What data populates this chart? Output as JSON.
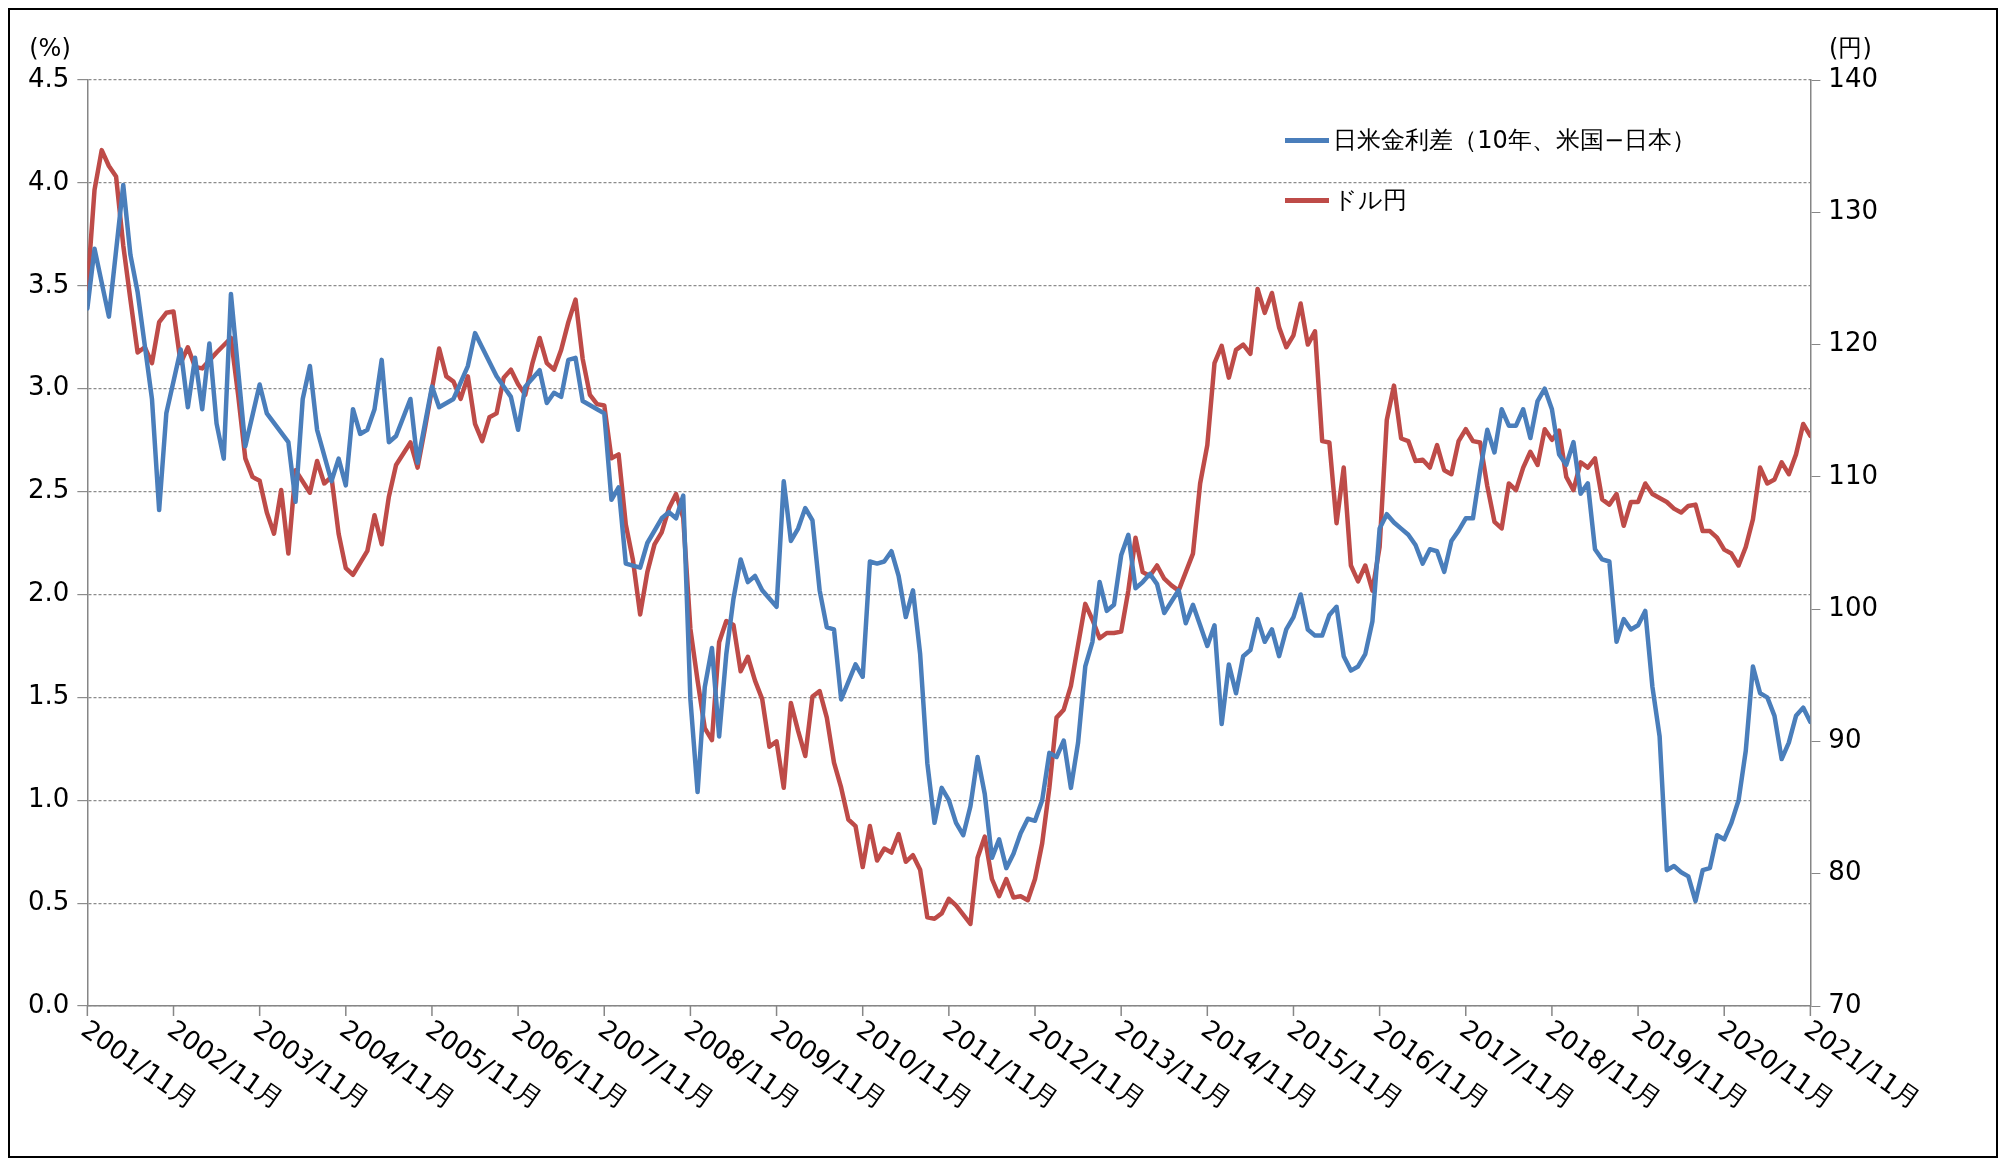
{
  "chart_data": {
    "type": "line",
    "ylabel": "(%)",
    "y2label": "(円)",
    "ylim": [
      0,
      4.5
    ],
    "yticks": [
      {
        "value": 0,
        "label": "0.0"
      },
      {
        "value": 0.5,
        "label": "0.5"
      },
      {
        "value": 1,
        "label": "1.0"
      },
      {
        "value": 1.5,
        "label": "1.5"
      },
      {
        "value": 2,
        "label": "2.0"
      },
      {
        "value": 2.5,
        "label": "2.5"
      },
      {
        "value": 3,
        "label": "3.0"
      },
      {
        "value": 3.5,
        "label": "3.5"
      },
      {
        "value": 4,
        "label": "4.0"
      },
      {
        "value": 4.5,
        "label": "4.5"
      }
    ],
    "y2lim": [
      70,
      140
    ],
    "y2ticks": [
      70,
      80,
      90,
      100,
      110,
      120,
      130,
      140
    ],
    "xlim": [
      "2001-11",
      "2021-11"
    ],
    "xticks": [
      {
        "value": "2001-11",
        "label": "2001/11月"
      },
      {
        "value": "2002-11",
        "label": "2002/11月"
      },
      {
        "value": "2003-11",
        "label": "2003/11月"
      },
      {
        "value": "2004-11",
        "label": "2004/11月"
      },
      {
        "value": "2005-11",
        "label": "2005/11月"
      },
      {
        "value": "2006-11",
        "label": "2006/11月"
      },
      {
        "value": "2007-11",
        "label": "2007/11月"
      },
      {
        "value": "2008-11",
        "label": "2008/11月"
      },
      {
        "value": "2009-11",
        "label": "2009/11月"
      },
      {
        "value": "2010-11",
        "label": "2010/11月"
      },
      {
        "value": "2011-11",
        "label": "2011/11月"
      },
      {
        "value": "2012-11",
        "label": "2012/11月"
      },
      {
        "value": "2013-11",
        "label": "2013/11月"
      },
      {
        "value": "2014-11",
        "label": "2014/11月"
      },
      {
        "value": "2015-11",
        "label": "2015/11月"
      },
      {
        "value": "2016-11",
        "label": "2016/11月"
      },
      {
        "value": "2017-11",
        "label": "2017/11月"
      },
      {
        "value": "2018-11",
        "label": "2018/11月"
      },
      {
        "value": "2019-11",
        "label": "2019/11月"
      },
      {
        "value": "2020-11",
        "label": "2020/11月"
      },
      {
        "value": "2021-11",
        "label": "2021/11月"
      }
    ],
    "grid": "y",
    "legend": "top right",
    "marker": "none",
    "line_style": "solid",
    "series": [
      {
        "name": "日米金利差（10年、米国−日本）",
        "color": "#4a7ebb",
        "x": [
          "2001-11",
          "2001-12",
          "2002-02",
          "2002-04",
          "2002-05",
          "2002-06",
          "2002-08",
          "2002-09",
          "2002-10",
          "2002-12",
          "2003-01",
          "2003-02",
          "2003-03",
          "2003-04",
          "2003-05",
          "2003-06",
          "2003-07",
          "2003-09",
          "2003-11",
          "2003-12",
          "2004-03",
          "2004-04",
          "2004-05",
          "2004-06",
          "2004-07",
          "2004-09",
          "2004-10",
          "2004-11",
          "2004-12",
          "2005-01",
          "2005-02",
          "2005-03",
          "2005-04",
          "2005-05",
          "2005-06",
          "2005-08",
          "2005-09",
          "2005-11",
          "2005-12",
          "2006-02",
          "2006-04",
          "2006-05",
          "2006-06",
          "2006-08",
          "2006-10",
          "2006-11",
          "2006-12",
          "2007-02",
          "2007-03",
          "2007-04",
          "2007-05",
          "2007-06",
          "2007-07",
          "2007-08",
          "2007-10",
          "2007-11",
          "2007-12",
          "2008-01",
          "2008-02",
          "2008-04",
          "2008-05",
          "2008-07",
          "2008-08",
          "2008-09",
          "2008-10",
          "2008-11",
          "2008-12",
          "2009-01",
          "2009-02",
          "2009-03",
          "2009-04",
          "2009-05",
          "2009-06",
          "2009-07",
          "2009-08",
          "2009-09",
          "2009-11",
          "2009-12",
          "2010-01",
          "2010-02",
          "2010-03",
          "2010-04",
          "2010-05",
          "2010-06",
          "2010-07",
          "2010-08",
          "2010-10",
          "2010-11",
          "2010-12",
          "2011-01",
          "2011-02",
          "2011-03",
          "2011-04",
          "2011-05",
          "2011-06",
          "2011-07",
          "2011-08",
          "2011-09",
          "2011-10",
          "2011-11",
          "2011-12",
          "2012-01",
          "2012-02",
          "2012-03",
          "2012-04",
          "2012-05",
          "2012-06",
          "2012-07",
          "2012-08",
          "2012-09",
          "2012-10",
          "2012-11",
          "2012-12",
          "2013-01",
          "2013-02",
          "2013-03",
          "2013-04",
          "2013-05",
          "2013-06",
          "2013-07",
          "2013-08",
          "2013-09",
          "2013-10",
          "2013-11",
          "2013-12",
          "2014-01",
          "2014-02",
          "2014-03",
          "2014-04",
          "2014-05",
          "2014-07",
          "2014-08",
          "2014-09",
          "2014-10",
          "2014-11",
          "2014-12",
          "2015-01",
          "2015-02",
          "2015-03",
          "2015-04",
          "2015-05",
          "2015-06",
          "2015-07",
          "2015-08",
          "2015-09",
          "2015-10",
          "2015-11",
          "2015-12",
          "2016-01",
          "2016-02",
          "2016-03",
          "2016-04",
          "2016-05",
          "2016-06",
          "2016-07",
          "2016-08",
          "2016-09",
          "2016-10",
          "2016-11",
          "2016-12",
          "2017-01",
          "2017-02",
          "2017-03",
          "2017-04",
          "2017-05",
          "2017-06",
          "2017-07",
          "2017-08",
          "2017-09",
          "2017-10",
          "2017-11",
          "2017-12",
          "2018-01",
          "2018-02",
          "2018-03",
          "2018-04",
          "2018-05",
          "2018-06",
          "2018-07",
          "2018-08",
          "2018-09",
          "2018-10",
          "2018-11",
          "2018-12",
          "2019-01",
          "2019-02",
          "2019-03",
          "2019-04",
          "2019-05",
          "2019-06",
          "2019-07",
          "2019-08",
          "2019-09",
          "2019-10",
          "2019-11",
          "2019-12",
          "2020-01",
          "2020-02",
          "2020-03",
          "2020-04",
          "2020-05",
          "2020-06",
          "2020-07",
          "2020-08",
          "2020-09",
          "2020-10",
          "2020-11",
          "2020-12",
          "2021-01",
          "2021-02",
          "2021-03",
          "2021-04",
          "2021-05",
          "2021-06",
          "2021-07",
          "2021-08",
          "2021-09",
          "2021-10",
          "2021-11"
        ],
        "values": [
          3.39,
          3.68,
          3.35,
          3.99,
          3.65,
          3.47,
          2.95,
          2.41,
          2.88,
          3.19,
          2.91,
          3.15,
          2.9,
          3.22,
          2.83,
          2.66,
          3.46,
          2.72,
          3.02,
          2.88,
          2.74,
          2.45,
          2.95,
          3.11,
          2.8,
          2.55,
          2.66,
          2.53,
          2.9,
          2.78,
          2.8,
          2.9,
          3.14,
          2.74,
          2.77,
          2.95,
          2.64,
          3.01,
          2.91,
          2.95,
          3.11,
          3.27,
          3.2,
          3.06,
          2.96,
          2.8,
          3.01,
          3.09,
          2.93,
          2.98,
          2.96,
          3.14,
          3.15,
          2.94,
          2.9,
          2.88,
          2.46,
          2.52,
          2.15,
          2.13,
          2.25,
          2.37,
          2.4,
          2.37,
          2.48,
          1.49,
          1.04,
          1.55,
          1.74,
          1.31,
          1.71,
          1.98,
          2.17,
          2.06,
          2.09,
          2.02,
          1.94,
          2.55,
          2.26,
          2.32,
          2.42,
          2.36,
          2.02,
          1.84,
          1.83,
          1.49,
          1.66,
          1.6,
          2.16,
          2.15,
          2.16,
          2.21,
          2.09,
          1.89,
          2.02,
          1.71,
          1.18,
          0.89,
          1.06,
          1.0,
          0.89,
          0.83,
          0.97,
          1.21,
          1.03,
          0.72,
          0.81,
          0.67,
          0.74,
          0.84,
          0.91,
          0.9,
          1.0,
          1.23,
          1.21,
          1.29,
          1.06,
          1.28,
          1.65,
          1.77,
          2.06,
          1.92,
          1.95,
          2.19,
          2.29,
          2.03,
          2.06,
          2.1,
          2.05,
          1.91,
          2.02,
          1.86,
          1.95,
          1.85,
          1.75,
          1.85,
          1.37,
          1.66,
          1.52,
          1.7,
          1.73,
          1.88,
          1.77,
          1.83,
          1.7,
          1.83,
          1.89,
          2.0,
          1.83,
          1.8,
          1.8,
          1.9,
          1.94,
          1.7,
          1.63,
          1.65,
          1.71,
          1.87,
          2.32,
          2.39,
          2.35,
          2.32,
          2.29,
          2.24,
          2.15,
          2.22,
          2.21,
          2.11,
          2.26,
          2.31,
          2.37,
          2.37,
          2.6,
          2.8,
          2.69,
          2.9,
          2.82,
          2.82,
          2.9,
          2.76,
          2.94,
          3.0,
          2.9,
          2.68,
          2.63,
          2.74,
          2.49,
          2.54,
          2.22,
          2.17,
          2.16,
          1.77,
          1.88,
          1.83,
          1.85,
          1.92,
          1.55,
          1.31,
          0.66,
          0.68,
          0.65,
          0.63,
          0.51,
          0.66,
          0.67,
          0.83,
          0.81,
          0.89,
          1.0,
          1.24,
          1.65,
          1.52,
          1.5,
          1.41,
          1.2,
          1.28,
          1.41,
          1.45,
          1.38
        ]
      },
      {
        "name": "ドル円",
        "color": "#be4b48",
        "axis": "y2",
        "x": [
          "2001-11",
          "2001-12",
          "2002-01",
          "2002-02",
          "2002-03",
          "2002-04",
          "2002-05",
          "2002-06",
          "2002-07",
          "2002-08",
          "2002-09",
          "2002-10",
          "2002-11",
          "2002-12",
          "2003-01",
          "2003-02",
          "2003-03",
          "2003-05",
          "2003-07",
          "2003-08",
          "2003-09",
          "2003-10",
          "2003-11",
          "2003-12",
          "2004-01",
          "2004-02",
          "2004-03",
          "2004-04",
          "2004-06",
          "2004-07",
          "2004-08",
          "2004-09",
          "2004-10",
          "2004-11",
          "2004-12",
          "2005-01",
          "2005-02",
          "2005-03",
          "2005-04",
          "2005-05",
          "2005-06",
          "2005-08",
          "2005-09",
          "2005-10",
          "2005-12",
          "2006-01",
          "2006-02",
          "2006-03",
          "2006-04",
          "2006-05",
          "2006-06",
          "2006-07",
          "2006-08",
          "2006-09",
          "2006-10",
          "2006-11",
          "2006-12",
          "2007-01",
          "2007-02",
          "2007-03",
          "2007-04",
          "2007-05",
          "2007-06",
          "2007-07",
          "2007-08",
          "2007-09",
          "2007-10",
          "2007-11",
          "2007-12",
          "2008-01",
          "2008-02",
          "2008-03",
          "2008-04",
          "2008-05",
          "2008-06",
          "2008-07",
          "2008-08",
          "2008-09",
          "2008-10",
          "2008-11",
          "2008-12",
          "2009-01",
          "2009-02",
          "2009-03",
          "2009-04",
          "2009-05",
          "2009-06",
          "2009-07",
          "2009-08",
          "2009-09",
          "2009-10",
          "2009-11",
          "2009-12",
          "2010-01",
          "2010-02",
          "2010-03",
          "2010-04",
          "2010-05",
          "2010-06",
          "2010-07",
          "2010-08",
          "2010-09",
          "2010-10",
          "2010-11",
          "2010-12",
          "2011-01",
          "2011-02",
          "2011-03",
          "2011-04",
          "2011-05",
          "2011-06",
          "2011-07",
          "2011-08",
          "2011-09",
          "2011-10",
          "2011-11",
          "2011-12",
          "2012-01",
          "2012-02",
          "2012-03",
          "2012-04",
          "2012-05",
          "2012-06",
          "2012-07",
          "2012-08",
          "2012-09",
          "2012-10",
          "2012-11",
          "2012-12",
          "2013-01",
          "2013-02",
          "2013-03",
          "2013-04",
          "2013-05",
          "2013-06",
          "2013-07",
          "2013-08",
          "2013-09",
          "2013-10",
          "2013-11",
          "2013-12",
          "2014-01",
          "2014-02",
          "2014-03",
          "2014-04",
          "2014-05",
          "2014-06",
          "2014-07",
          "2014-08",
          "2014-09",
          "2014-10",
          "2014-11",
          "2014-12",
          "2015-01",
          "2015-02",
          "2015-03",
          "2015-04",
          "2015-05",
          "2015-06",
          "2015-07",
          "2015-08",
          "2015-09",
          "2015-10",
          "2015-11",
          "2015-12",
          "2016-01",
          "2016-02",
          "2016-03",
          "2016-04",
          "2016-05",
          "2016-06",
          "2016-07",
          "2016-08",
          "2016-09",
          "2016-10",
          "2016-11",
          "2016-12",
          "2017-01",
          "2017-02",
          "2017-03",
          "2017-04",
          "2017-05",
          "2017-06",
          "2017-07",
          "2017-08",
          "2017-09",
          "2017-10",
          "2017-11",
          "2017-12",
          "2018-01",
          "2018-02",
          "2018-03",
          "2018-04",
          "2018-05",
          "2018-06",
          "2018-07",
          "2018-08",
          "2018-09",
          "2018-10",
          "2018-11",
          "2018-12",
          "2019-01",
          "2019-02",
          "2019-03",
          "2019-04",
          "2019-05",
          "2019-06",
          "2019-07",
          "2019-08",
          "2019-09",
          "2019-10",
          "2019-11",
          "2019-12",
          "2020-01",
          "2020-02",
          "2020-03",
          "2020-04",
          "2020-05",
          "2020-06",
          "2020-07",
          "2020-08",
          "2020-09",
          "2020-10",
          "2020-11",
          "2020-12",
          "2021-01",
          "2021-02",
          "2021-03",
          "2021-04",
          "2021-05",
          "2021-06",
          "2021-07",
          "2021-08",
          "2021-09",
          "2021-10",
          "2021-11"
        ],
        "values": [
          124.2,
          131.7,
          134.7,
          133.5,
          132.7,
          127.5,
          123.4,
          119.4,
          119.8,
          118.6,
          121.7,
          122.4,
          122.5,
          118.6,
          119.8,
          118.3,
          118.2,
          119.4,
          120.5,
          116.2,
          111.4,
          110.0,
          109.7,
          107.3,
          105.7,
          109.0,
          104.2,
          110.5,
          108.8,
          111.2,
          109.5,
          110.0,
          105.7,
          103.1,
          102.6,
          103.5,
          104.4,
          107.1,
          104.9,
          108.5,
          110.9,
          112.6,
          110.7,
          113.6,
          119.7,
          117.6,
          117.2,
          115.9,
          117.6,
          114.0,
          112.7,
          114.5,
          114.8,
          117.5,
          118.1,
          117.0,
          116.2,
          118.6,
          120.5,
          118.6,
          118.1,
          119.6,
          121.7,
          123.4,
          118.9,
          116.2,
          115.5,
          115.4,
          111.4,
          111.7,
          106.4,
          103.7,
          99.6,
          102.8,
          104.9,
          105.8,
          107.6,
          108.7,
          106.9,
          98.5,
          94.6,
          91.0,
          90.1,
          97.5,
          99.1,
          98.8,
          95.3,
          96.4,
          94.6,
          93.2,
          89.6,
          90.0,
          86.5,
          92.9,
          90.8,
          88.9,
          93.4,
          93.8,
          91.8,
          88.4,
          86.5,
          84.1,
          83.6,
          80.5,
          83.6,
          81.0,
          81.9,
          81.6,
          83.0,
          80.9,
          81.4,
          80.3,
          76.7,
          76.6,
          77.0,
          78.1,
          77.6,
          76.9,
          76.2,
          81.2,
          82.8,
          79.6,
          78.3,
          79.6,
          78.2,
          78.3,
          78.0,
          79.6,
          82.3,
          86.5,
          91.8,
          92.4,
          94.2,
          97.3,
          100.4,
          99.2,
          97.8,
          98.2,
          98.2,
          98.3,
          101.4,
          105.4,
          102.8,
          102.5,
          103.3,
          102.3,
          101.8,
          101.4,
          102.8,
          104.2,
          109.5,
          112.4,
          118.6,
          119.9,
          117.5,
          119.6,
          120.0,
          119.3,
          124.2,
          122.4,
          123.9,
          121.3,
          119.8,
          120.7,
          123.1,
          120.0,
          121.0,
          112.7,
          112.6,
          106.5,
          110.7,
          103.3,
          102.1,
          103.3,
          101.4,
          104.7,
          114.3,
          116.9,
          112.9,
          112.7,
          111.2,
          111.3,
          110.7,
          112.4,
          110.5,
          110.2,
          112.7,
          113.6,
          112.7,
          112.6,
          109.3,
          106.6,
          106.1,
          109.5,
          109.0,
          110.7,
          111.9,
          110.9,
          113.6,
          112.8,
          113.5,
          110.0,
          109.0,
          111.1,
          110.7,
          111.4,
          108.3,
          107.9,
          108.7,
          106.3,
          108.1,
          108.1,
          109.5,
          108.7,
          108.4,
          108.1,
          107.6,
          107.3,
          107.8,
          107.9,
          105.9,
          105.9,
          105.4,
          104.5,
          104.2,
          103.3,
          104.7,
          106.8,
          110.7,
          109.5,
          109.8,
          111.1,
          110.2,
          111.7,
          114.0,
          113.1
        ]
      }
    ]
  }
}
